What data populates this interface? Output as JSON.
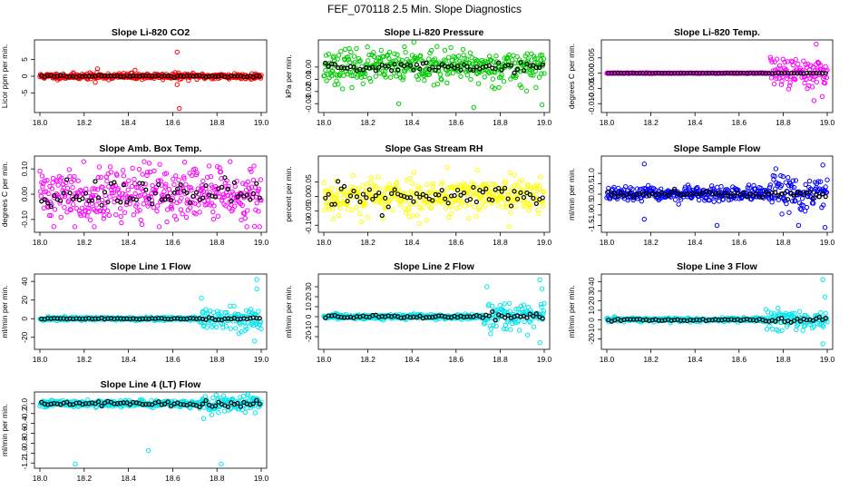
{
  "title": "FEF_070118  2.5 Min. Slope Diagnostics",
  "chart_data": [
    {
      "type": "scatter",
      "title": "Slope Li-820 CO2",
      "ylabel": "Licor ppm per min.",
      "xlim": [
        18.0,
        19.0
      ],
      "ylim": [
        -10,
        10
      ],
      "xticks": [
        "18.0",
        "18.2",
        "18.4",
        "18.6",
        "18.8",
        "19.0"
      ],
      "yticks": [
        {
          "v": -5,
          "label": "-5"
        },
        {
          "v": 0,
          "label": "0"
        },
        {
          "v": 5,
          "label": "5"
        }
      ],
      "color": "#ff0000",
      "spread": 0.8,
      "seed": 11,
      "outliers": [
        {
          "x": 18.26,
          "y": 2.2
        },
        {
          "x": 18.25,
          "y": -1.8
        },
        {
          "x": 18.62,
          "y": 7.2
        },
        {
          "x": 18.63,
          "y": -9.6
        },
        {
          "x": 18.62,
          "y": -2.5
        },
        {
          "x": 18.43,
          "y": 1.8
        }
      ],
      "black_spread": 0.3
    },
    {
      "type": "scatter",
      "title": "Slope Li-820 Pressure",
      "ylabel": "kPa per min.",
      "xlim": [
        18.0,
        19.0
      ],
      "ylim": [
        -0.035,
        0.02
      ],
      "xticks": [
        "18.0",
        "18.2",
        "18.4",
        "18.6",
        "18.8",
        "19.0"
      ],
      "yticks": [
        {
          "v": -0.03,
          "label": "-0.03"
        },
        {
          "v": -0.02,
          "label": "-0.02"
        },
        {
          "v": -0.01,
          "label": "-0.01"
        },
        {
          "v": 0.0,
          "label": "0.00"
        }
      ],
      "color": "#00cc00",
      "spread": 0.012,
      "seed": 23,
      "outliers": [
        {
          "x": 18.34,
          "y": -0.03
        },
        {
          "x": 18.68,
          "y": -0.033
        },
        {
          "x": 18.99,
          "y": -0.031
        }
      ],
      "black_spread": 0.004
    },
    {
      "type": "scatter",
      "title": "Slope Li-820 Temp.",
      "ylabel": "degrees C per min.",
      "xlim": [
        18.0,
        19.0
      ],
      "ylim": [
        -0.012,
        0.01
      ],
      "xticks": [
        "18.0",
        "18.2",
        "18.4",
        "18.6",
        "18.8",
        "19.0"
      ],
      "yticks": [
        {
          "v": -0.01,
          "label": "-0.010"
        },
        {
          "v": -0.005,
          "label": "-0.005"
        },
        {
          "v": 0.0,
          "label": "0.000"
        },
        {
          "v": 0.005,
          "label": "0.005"
        }
      ],
      "color": "#ff00ff",
      "spread": 0.00012,
      "seed": 37,
      "late_spread": 0.0045,
      "late_start": 18.74,
      "outliers": [
        {
          "x": 18.95,
          "y": 0.0095
        },
        {
          "x": 18.94,
          "y": -0.009
        }
      ],
      "black_spread": 5e-05
    },
    {
      "type": "scatter",
      "title": "Slope Amb. Box Temp.",
      "ylabel": "degrees C per min.",
      "xlim": [
        18.0,
        19.0
      ],
      "ylim": [
        -0.14,
        0.14
      ],
      "xticks": [
        "18.0",
        "18.2",
        "18.4",
        "18.6",
        "18.8",
        "19.0"
      ],
      "yticks": [
        {
          "v": -0.1,
          "label": "-0.10"
        },
        {
          "v": 0.0,
          "label": "0.00"
        },
        {
          "v": 0.1,
          "label": "0.10"
        }
      ],
      "color": "#ff00ff",
      "spread": 0.1,
      "seed": 41,
      "outliers": [],
      "black_spread": 0.05
    },
    {
      "type": "scatter",
      "title": "Slope Gas Stream RH",
      "ylabel": "percent per min.",
      "xlim": [
        18.0,
        19.0
      ],
      "ylim": [
        -0.115,
        0.13
      ],
      "xticks": [
        "18.0",
        "18.2",
        "18.4",
        "18.6",
        "18.8",
        "19.0"
      ],
      "yticks": [
        {
          "v": -0.1,
          "label": "-0.10"
        },
        {
          "v": -0.05,
          "label": "-0.05"
        },
        {
          "v": 0.0,
          "label": "0.00"
        },
        {
          "v": 0.05,
          "label": "0.05"
        }
      ],
      "color": "#ffff00",
      "spread": 0.06,
      "seed": 53,
      "outliers": [
        {
          "x": 18.56,
          "y": 0.1
        },
        {
          "x": 18.84,
          "y": -0.105
        }
      ],
      "black_spread": 0.04
    },
    {
      "type": "scatter",
      "title": "Slope Sample Flow",
      "ylabel": "ml/min per min.",
      "xlim": [
        18.0,
        19.0
      ],
      "ylim": [
        -1.7,
        1.7
      ],
      "xticks": [
        "18.0",
        "18.2",
        "18.4",
        "18.6",
        "18.8",
        "19.0"
      ],
      "yticks": [
        {
          "v": -1.5,
          "label": "-1.5"
        },
        {
          "v": -1.0,
          "label": "-1.0"
        },
        {
          "v": -0.5,
          "label": "-0.5"
        },
        {
          "v": 0.0,
          "label": "0.0"
        },
        {
          "v": 0.5,
          "label": "0.5"
        },
        {
          "v": 1.0,
          "label": "1.0"
        }
      ],
      "color": "#0000ff",
      "spread": 0.3,
      "seed": 67,
      "late_spread": 0.8,
      "late_start": 18.74,
      "outliers": [
        {
          "x": 18.17,
          "y": 1.45
        },
        {
          "x": 18.17,
          "y": -1.2
        },
        {
          "x": 18.98,
          "y": 1.4
        },
        {
          "x": 18.99,
          "y": -1.6
        },
        {
          "x": 18.5,
          "y": -1.5
        },
        {
          "x": 18.87,
          "y": -1.5
        }
      ],
      "black_spread": 0.15
    },
    {
      "type": "scatter",
      "title": "Slope Line 1 Flow",
      "ylabel": "ml/min per min.",
      "xlim": [
        18.0,
        19.0
      ],
      "ylim": [
        -30,
        45
      ],
      "xticks": [
        "18.0",
        "18.2",
        "18.4",
        "18.6",
        "18.8",
        "19.0"
      ],
      "yticks": [
        {
          "v": -20,
          "label": "-20"
        },
        {
          "v": 0,
          "label": "0"
        },
        {
          "v": 20,
          "label": "20"
        },
        {
          "v": 40,
          "label": "40"
        }
      ],
      "color": "#00e5ee",
      "spread": 1.8,
      "seed": 71,
      "late_spread": 12,
      "late_start": 18.72,
      "outliers": [
        {
          "x": 18.98,
          "y": 42
        },
        {
          "x": 18.98,
          "y": 32
        },
        {
          "x": 18.97,
          "y": -24
        },
        {
          "x": 18.73,
          "y": 22
        }
      ],
      "black_spread": 0.6
    },
    {
      "type": "scatter",
      "title": "Slope Line 2 Flow",
      "ylabel": "ml/min per min.",
      "xlim": [
        18.0,
        19.0
      ],
      "ylim": [
        -30,
        40
      ],
      "xticks": [
        "18.0",
        "18.2",
        "18.4",
        "18.6",
        "18.8",
        "19.0"
      ],
      "yticks": [
        {
          "v": -20,
          "label": "-20"
        },
        {
          "v": -10,
          "label": "-10"
        },
        {
          "v": 0,
          "label": "0"
        },
        {
          "v": 10,
          "label": "10"
        },
        {
          "v": 20,
          "label": "20"
        },
        {
          "v": 30,
          "label": "30"
        }
      ],
      "color": "#00e5ee",
      "spread": 2.2,
      "seed": 83,
      "late_spread": 12,
      "late_start": 18.72,
      "outliers": [
        {
          "x": 18.98,
          "y": 37
        },
        {
          "x": 18.99,
          "y": 28
        },
        {
          "x": 18.98,
          "y": -26
        },
        {
          "x": 18.74,
          "y": 30
        }
      ],
      "black_spread": 1.5
    },
    {
      "type": "scatter",
      "title": "Slope Line 3 Flow",
      "ylabel": "ml/min per min.",
      "xlim": [
        18.0,
        19.0
      ],
      "ylim": [
        -28,
        45
      ],
      "xticks": [
        "18.0",
        "18.2",
        "18.4",
        "18.6",
        "18.8",
        "19.0"
      ],
      "yticks": [
        {
          "v": -20,
          "label": "-20"
        },
        {
          "v": -10,
          "label": "-10"
        },
        {
          "v": 0,
          "label": "0"
        },
        {
          "v": 10,
          "label": "10"
        },
        {
          "v": 20,
          "label": "20"
        },
        {
          "v": 30,
          "label": "30"
        },
        {
          "v": 40,
          "label": "40"
        }
      ],
      "color": "#00e5ee",
      "spread": 2,
      "seed": 97,
      "late_spread": 9,
      "late_start": 18.72,
      "outliers": [
        {
          "x": 18.98,
          "y": 42
        },
        {
          "x": 18.98,
          "y": -25
        },
        {
          "x": 18.99,
          "y": 24
        }
      ],
      "black_spread": 1.2
    },
    {
      "type": "scatter",
      "title": "Slope Line 4 (LT) Flow",
      "ylabel": "ml/min per min.",
      "xlim": [
        18.0,
        19.0
      ],
      "ylim": [
        -1.25,
        0.18
      ],
      "xticks": [
        "18.0",
        "18.2",
        "18.4",
        "18.6",
        "18.8",
        "19.0"
      ],
      "yticks": [
        {
          "v": -1.2,
          "label": "-1.2"
        },
        {
          "v": -1.0,
          "label": "-1.0"
        },
        {
          "v": -0.8,
          "label": "-0.8"
        },
        {
          "v": -0.6,
          "label": "-0.6"
        },
        {
          "v": -0.4,
          "label": "-0.4"
        },
        {
          "v": -0.2,
          "label": "-0.2"
        },
        {
          "v": 0.0,
          "label": "0.0"
        }
      ],
      "color": "#00e5ee",
      "spread": 0.06,
      "seed": 101,
      "late_spread": 0.15,
      "late_start": 18.72,
      "outliers": [
        {
          "x": 18.16,
          "y": -1.22
        },
        {
          "x": 18.49,
          "y": -0.95
        },
        {
          "x": 18.82,
          "y": -1.22
        },
        {
          "x": 18.74,
          "y": -0.3
        }
      ],
      "black_spread": 0.04
    }
  ]
}
